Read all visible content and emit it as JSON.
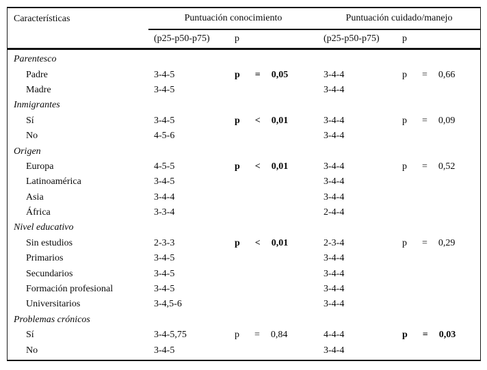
{
  "table": {
    "col_label": "Características",
    "group_knowledge": "Puntuación conocimiento",
    "group_care": "Puntuación cuidado/manejo",
    "sub_score": "(p25-p50-p75)",
    "sub_p": "p",
    "sections": [
      {
        "name": "Parentesco",
        "rows": [
          {
            "label": "Padre",
            "know": "3-4-5",
            "care": "3-4-4"
          },
          {
            "label": "Madre",
            "know": "3-4-5",
            "care": "3-4-4"
          }
        ],
        "p_know": {
          "sym": "p",
          "op": "=",
          "val": "0,05",
          "bold": true
        },
        "p_care": {
          "sym": "p",
          "op": "=",
          "val": "0,66",
          "bold": false
        }
      },
      {
        "name": "Inmigrantes",
        "rows": [
          {
            "label": "Sí",
            "know": "3-4-5",
            "care": "3-4-4"
          },
          {
            "label": "No",
            "know": "4-5-6",
            "care": "3-4-4"
          }
        ],
        "p_know": {
          "sym": "p",
          "op": "<",
          "val": "0,01",
          "bold": true
        },
        "p_care": {
          "sym": "p",
          "op": "=",
          "val": "0,09",
          "bold": false
        }
      },
      {
        "name": "Origen",
        "rows": [
          {
            "label": "Europa",
            "know": "4-5-5",
            "care": "3-4-4"
          },
          {
            "label": "Latinoamérica",
            "know": "3-4-5",
            "care": "3-4-4"
          },
          {
            "label": "Asia",
            "know": "3-4-4",
            "care": "3-4-4"
          },
          {
            "label": "África",
            "know": "3-3-4",
            "care": "2-4-4"
          }
        ],
        "p_know": {
          "sym": "p",
          "op": "<",
          "val": "0,01",
          "bold": true
        },
        "p_care": {
          "sym": "p",
          "op": "=",
          "val": "0,52",
          "bold": false
        }
      },
      {
        "name": "Nivel educativo",
        "rows": [
          {
            "label": "Sin estudios",
            "know": "2-3-3",
            "care": "2-3-4"
          },
          {
            "label": "Primarios",
            "know": "3-4-5",
            "care": "3-4-4"
          },
          {
            "label": "Secundarios",
            "know": "3-4-5",
            "care": "3-4-4"
          },
          {
            "label": "Formación profesional",
            "know": "3-4-5",
            "care": "3-4-4"
          },
          {
            "label": "Universitarios",
            "know": "3-4,5-6",
            "care": "3-4-4"
          }
        ],
        "p_know": {
          "sym": "p",
          "op": "<",
          "val": "0,01",
          "bold": true
        },
        "p_care": {
          "sym": "p",
          "op": "=",
          "val": "0,29",
          "bold": false
        }
      },
      {
        "name": "Problemas crónicos",
        "rows": [
          {
            "label": "Sí",
            "know": "3-4-5,75",
            "care": "4-4-4"
          },
          {
            "label": "No",
            "know": "3-4-5",
            "care": "3-4-4"
          }
        ],
        "p_know": {
          "sym": "p",
          "op": "=",
          "val": "0,84",
          "bold": false
        },
        "p_care": {
          "sym": "p",
          "op": "=",
          "val": "0,03",
          "bold": true
        }
      }
    ]
  }
}
